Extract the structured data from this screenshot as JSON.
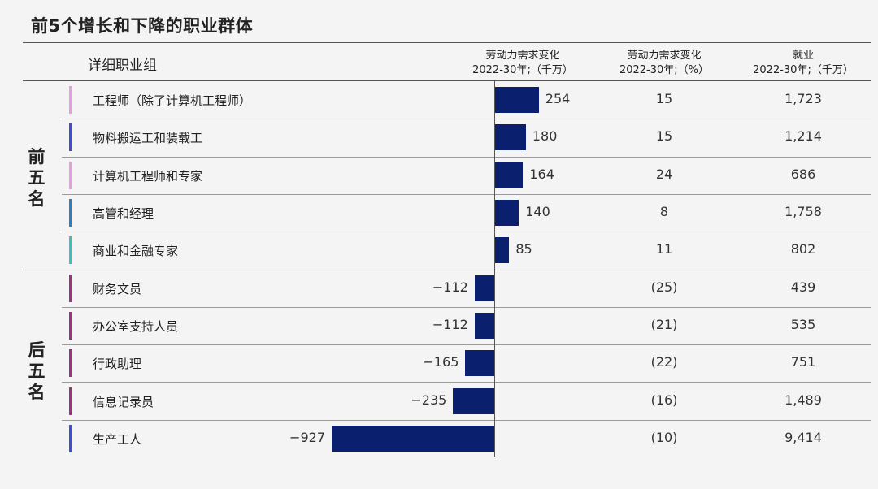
{
  "title": "前5个增长和下降的职业群体",
  "headers": {
    "occupation": "详细职业组",
    "change_abs": [
      "劳动力需求变化",
      "2022-30年;（千万）"
    ],
    "change_pct": [
      "劳动力需求变化",
      "2022-30年;（%）"
    ],
    "employment": [
      "就业",
      "2022-30年;（千万）"
    ]
  },
  "groups": {
    "top": "前五名",
    "bottom": "后五名"
  },
  "chart_data": {
    "type": "bar",
    "orientation": "horizontal",
    "title": "前5个增长和下降的职业群体",
    "categories": [
      "工程师（除了计算机工程师）",
      "物料搬运工和装载工",
      "计算机工程师和专家",
      "高管和经理",
      "商业和金融专家",
      "财务文员",
      "办公室支持人员",
      "行政助理",
      "信息记录员",
      "生产工人"
    ],
    "series": [
      {
        "name": "劳动力需求变化 2022-30年;（千万）",
        "values": [
          254,
          180,
          164,
          140,
          85,
          -112,
          -112,
          -165,
          -235,
          -927
        ]
      }
    ],
    "xlim": [
      -927,
      254
    ],
    "grid": false,
    "bar_color": "#0a1f6e"
  },
  "rows": [
    {
      "label": "工程师（除了计算机工程师）",
      "value": 254,
      "value_text": "254",
      "pct": "15",
      "emp": "1,723",
      "accent": "#e79be1"
    },
    {
      "label": "物料搬运工和装载工",
      "value": 180,
      "value_text": "180",
      "pct": "15",
      "emp": "1,214",
      "accent": "#3d4ed8"
    },
    {
      "label": "计算机工程师和专家",
      "value": 164,
      "value_text": "164",
      "pct": "24",
      "emp": "686",
      "accent": "#e79be1"
    },
    {
      "label": "高管和经理",
      "value": 140,
      "value_text": "140",
      "pct": "8",
      "emp": "1,758",
      "accent": "#2f7fc0"
    },
    {
      "label": "商业和金融专家",
      "value": 85,
      "value_text": "85",
      "pct": "11",
      "emp": "802",
      "accent": "#3bbfb8"
    },
    {
      "label": "财务文员",
      "value": -112,
      "value_text": "−112",
      "pct": "(25)",
      "emp": "439",
      "accent": "#a0307c"
    },
    {
      "label": "办公室支持人员",
      "value": -112,
      "value_text": "−112",
      "pct": "(21)",
      "emp": "535",
      "accent": "#a0307c"
    },
    {
      "label": "行政助理",
      "value": -165,
      "value_text": "−165",
      "pct": "(22)",
      "emp": "751",
      "accent": "#a0307c"
    },
    {
      "label": "信息记录员",
      "value": -235,
      "value_text": "−235",
      "pct": "(16)",
      "emp": "1,489",
      "accent": "#a0307c"
    },
    {
      "label": "生产工人",
      "value": -927,
      "value_text": "−927",
      "pct": "(10)",
      "emp": "9,414",
      "accent": "#3d4ed8"
    }
  ]
}
